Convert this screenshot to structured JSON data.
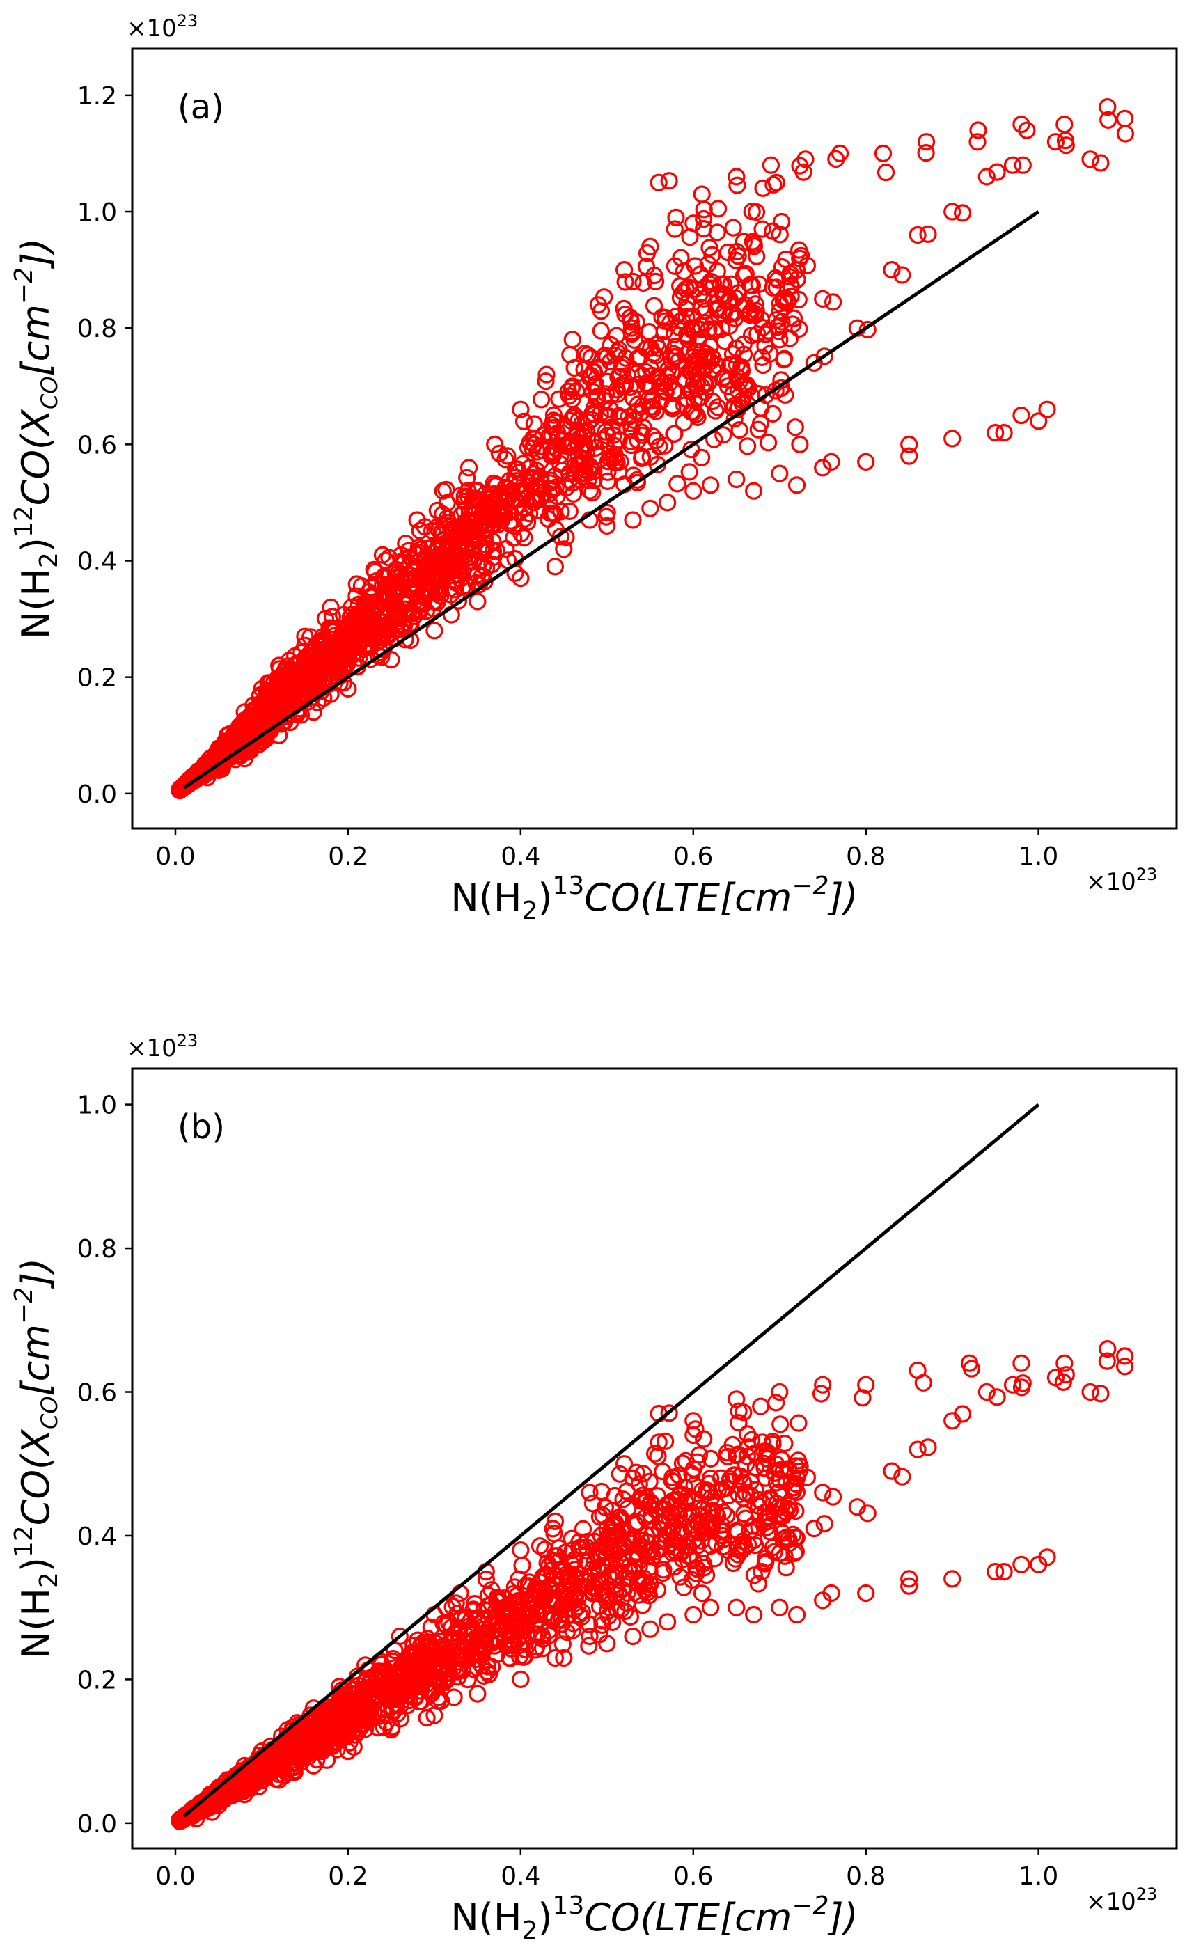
{
  "chart_data": [
    {
      "id": "a",
      "type": "scatter",
      "panel_label": "(a)",
      "xlabel_parts": {
        "n": "N(H",
        "sub": "2",
        "close": ")",
        "iso": "13",
        "co": "CO(LTE[cm",
        "exp": "−2",
        "end": "])"
      },
      "ylabel_parts": {
        "n": "N(H",
        "sub": "2",
        "close": ")",
        "iso": "12",
        "co": "CO(X",
        "co_sub": "CO",
        "bracket": "[cm",
        "exp": "−2",
        "end": "])"
      },
      "x_scale_note": {
        "base": "×10",
        "exp": "23"
      },
      "y_scale_note": {
        "base": "×10",
        "exp": "23"
      },
      "xlim": [
        -0.05,
        1.16
      ],
      "ylim": [
        -0.06,
        1.28
      ],
      "xticks": [
        0.0,
        0.2,
        0.4,
        0.6,
        0.8,
        1.0
      ],
      "xtick_labels": [
        "0.0",
        "0.2",
        "0.4",
        "0.6",
        "0.8",
        "1.0"
      ],
      "yticks": [
        0.0,
        0.2,
        0.4,
        0.6,
        0.8,
        1.0,
        1.2
      ],
      "ytick_labels": [
        "0.0",
        "0.2",
        "0.4",
        "0.6",
        "0.8",
        "1.0",
        "1.2"
      ],
      "reference_line": {
        "x": [
          0.01,
          1.0
        ],
        "y": [
          0.01,
          1.0
        ],
        "color": "#000000"
      },
      "marker_color": "#ff0000",
      "series_upper": [
        [
          0.02,
          0.03
        ],
        [
          0.04,
          0.06
        ],
        [
          0.06,
          0.1
        ],
        [
          0.08,
          0.14
        ],
        [
          0.1,
          0.18
        ],
        [
          0.12,
          0.22
        ],
        [
          0.15,
          0.27
        ],
        [
          0.18,
          0.32
        ],
        [
          0.21,
          0.36
        ],
        [
          0.24,
          0.41
        ],
        [
          0.28,
          0.47
        ],
        [
          0.31,
          0.52
        ],
        [
          0.34,
          0.56
        ],
        [
          0.37,
          0.6
        ],
        [
          0.4,
          0.66
        ],
        [
          0.43,
          0.72
        ],
        [
          0.46,
          0.78
        ],
        [
          0.49,
          0.84
        ],
        [
          0.52,
          0.9
        ],
        [
          0.55,
          0.94
        ],
        [
          0.58,
          0.99
        ],
        [
          0.61,
          1.03
        ],
        [
          0.65,
          1.06
        ],
        [
          0.69,
          1.08
        ],
        [
          0.73,
          1.09
        ],
        [
          0.77,
          1.1
        ],
        [
          0.82,
          1.1
        ],
        [
          0.87,
          1.12
        ],
        [
          0.93,
          1.14
        ],
        [
          0.98,
          1.15
        ],
        [
          1.03,
          1.15
        ],
        [
          1.08,
          1.18
        ],
        [
          1.1,
          1.16
        ]
      ],
      "series_lower": [
        [
          0.02,
          0.02
        ],
        [
          0.05,
          0.04
        ],
        [
          0.08,
          0.06
        ],
        [
          0.12,
          0.1
        ],
        [
          0.16,
          0.14
        ],
        [
          0.2,
          0.18
        ],
        [
          0.25,
          0.23
        ],
        [
          0.3,
          0.28
        ],
        [
          0.35,
          0.33
        ],
        [
          0.4,
          0.37
        ],
        [
          0.45,
          0.42
        ],
        [
          0.5,
          0.46
        ],
        [
          0.55,
          0.49
        ],
        [
          0.6,
          0.52
        ],
        [
          0.65,
          0.54
        ],
        [
          0.7,
          0.55
        ],
        [
          0.75,
          0.56
        ],
        [
          0.8,
          0.57
        ],
        [
          0.85,
          0.6
        ],
        [
          0.9,
          0.61
        ],
        [
          0.95,
          0.62
        ],
        [
          1.0,
          0.64
        ]
      ],
      "series_outliers": [
        [
          0.44,
          0.39
        ],
        [
          0.48,
          0.47
        ],
        [
          0.53,
          0.47
        ],
        [
          0.57,
          0.5
        ],
        [
          0.62,
          0.53
        ],
        [
          0.67,
          0.52
        ],
        [
          0.72,
          0.53
        ],
        [
          0.76,
          0.57
        ],
        [
          0.85,
          0.58
        ],
        [
          0.96,
          0.62
        ],
        [
          0.98,
          0.65
        ],
        [
          1.01,
          0.66
        ]
      ],
      "series_scatter_upper": [
        [
          0.56,
          1.05
        ],
        [
          0.6,
          0.98
        ],
        [
          0.64,
          0.93
        ],
        [
          0.68,
          0.97
        ],
        [
          0.72,
          0.9
        ],
        [
          0.75,
          0.85
        ],
        [
          0.79,
          0.8
        ],
        [
          0.83,
          0.9
        ],
        [
          0.86,
          0.96
        ],
        [
          0.9,
          1.0
        ],
        [
          0.94,
          1.06
        ],
        [
          0.97,
          1.08
        ],
        [
          1.02,
          1.12
        ],
        [
          1.06,
          1.09
        ],
        [
          0.62,
          0.88
        ],
        [
          0.66,
          0.84
        ],
        [
          0.7,
          0.78
        ],
        [
          0.74,
          0.74
        ],
        [
          0.53,
          0.88
        ],
        [
          0.58,
          0.82
        ],
        [
          0.5,
          0.75
        ],
        [
          0.46,
          0.7
        ],
        [
          0.55,
          0.7
        ],
        [
          0.6,
          0.75
        ],
        [
          0.64,
          0.7
        ]
      ]
    },
    {
      "id": "b",
      "type": "scatter",
      "panel_label": "(b)",
      "xlabel_parts": {
        "n": "N(H",
        "sub": "2",
        "close": ")",
        "iso": "13",
        "co": "CO(LTE[cm",
        "exp": "−2",
        "end": "])"
      },
      "ylabel_parts": {
        "n": "N(H",
        "sub": "2",
        "close": ")",
        "iso": "12",
        "co": "CO(X",
        "co_sub": "CO",
        "bracket": "[cm",
        "exp": "−2",
        "end": "])"
      },
      "x_scale_note": {
        "base": "×10",
        "exp": "23"
      },
      "y_scale_note": {
        "base": "×10",
        "exp": "23"
      },
      "xlim": [
        -0.05,
        1.16
      ],
      "ylim": [
        -0.035,
        1.05
      ],
      "xticks": [
        0.0,
        0.2,
        0.4,
        0.6,
        0.8,
        1.0
      ],
      "xtick_labels": [
        "0.0",
        "0.2",
        "0.4",
        "0.6",
        "0.8",
        "1.0"
      ],
      "yticks": [
        0.0,
        0.2,
        0.4,
        0.6,
        0.8,
        1.0
      ],
      "ytick_labels": [
        "0.0",
        "0.2",
        "0.4",
        "0.6",
        "0.8",
        "1.0"
      ],
      "reference_line": {
        "x": [
          0.01,
          1.0
        ],
        "y": [
          0.01,
          1.0
        ],
        "color": "#000000"
      },
      "marker_color": "#ff0000",
      "series_upper": [
        [
          0.02,
          0.02
        ],
        [
          0.04,
          0.04
        ],
        [
          0.06,
          0.06
        ],
        [
          0.08,
          0.08
        ],
        [
          0.1,
          0.1
        ],
        [
          0.13,
          0.13
        ],
        [
          0.16,
          0.16
        ],
        [
          0.19,
          0.19
        ],
        [
          0.22,
          0.22
        ],
        [
          0.26,
          0.26
        ],
        [
          0.3,
          0.29
        ],
        [
          0.33,
          0.32
        ],
        [
          0.36,
          0.35
        ],
        [
          0.4,
          0.38
        ],
        [
          0.44,
          0.42
        ],
        [
          0.48,
          0.46
        ],
        [
          0.52,
          0.5
        ],
        [
          0.56,
          0.53
        ],
        [
          0.6,
          0.56
        ],
        [
          0.65,
          0.59
        ],
        [
          0.7,
          0.6
        ],
        [
          0.75,
          0.61
        ],
        [
          0.8,
          0.61
        ],
        [
          0.86,
          0.63
        ],
        [
          0.92,
          0.64
        ],
        [
          0.98,
          0.64
        ],
        [
          1.03,
          0.64
        ],
        [
          1.08,
          0.66
        ],
        [
          1.1,
          0.65
        ]
      ],
      "series_lower": [
        [
          0.02,
          0.01
        ],
        [
          0.05,
          0.025
        ],
        [
          0.08,
          0.04
        ],
        [
          0.12,
          0.06
        ],
        [
          0.16,
          0.08
        ],
        [
          0.2,
          0.1
        ],
        [
          0.25,
          0.13
        ],
        [
          0.3,
          0.15
        ],
        [
          0.35,
          0.18
        ],
        [
          0.4,
          0.2
        ],
        [
          0.45,
          0.23
        ],
        [
          0.5,
          0.25
        ],
        [
          0.55,
          0.27
        ],
        [
          0.6,
          0.29
        ],
        [
          0.65,
          0.3
        ],
        [
          0.7,
          0.3
        ],
        [
          0.75,
          0.31
        ],
        [
          0.8,
          0.32
        ],
        [
          0.85,
          0.33
        ],
        [
          0.9,
          0.34
        ],
        [
          0.95,
          0.35
        ],
        [
          1.0,
          0.36
        ]
      ],
      "series_outliers": [
        [
          0.44,
          0.23
        ],
        [
          0.48,
          0.26
        ],
        [
          0.53,
          0.26
        ],
        [
          0.57,
          0.28
        ],
        [
          0.62,
          0.3
        ],
        [
          0.67,
          0.29
        ],
        [
          0.72,
          0.29
        ],
        [
          0.76,
          0.32
        ],
        [
          0.85,
          0.34
        ],
        [
          0.96,
          0.35
        ],
        [
          0.98,
          0.36
        ],
        [
          1.01,
          0.37
        ]
      ],
      "series_scatter_upper": [
        [
          0.56,
          0.57
        ],
        [
          0.6,
          0.54
        ],
        [
          0.64,
          0.51
        ],
        [
          0.68,
          0.53
        ],
        [
          0.72,
          0.48
        ],
        [
          0.75,
          0.46
        ],
        [
          0.79,
          0.44
        ],
        [
          0.83,
          0.49
        ],
        [
          0.86,
          0.52
        ],
        [
          0.9,
          0.56
        ],
        [
          0.94,
          0.6
        ],
        [
          0.97,
          0.61
        ],
        [
          1.02,
          0.62
        ],
        [
          1.06,
          0.6
        ],
        [
          0.62,
          0.48
        ],
        [
          0.66,
          0.46
        ],
        [
          0.7,
          0.43
        ],
        [
          0.74,
          0.41
        ],
        [
          0.53,
          0.48
        ],
        [
          0.58,
          0.45
        ],
        [
          0.5,
          0.41
        ],
        [
          0.46,
          0.38
        ],
        [
          0.55,
          0.38
        ],
        [
          0.6,
          0.41
        ],
        [
          0.64,
          0.38
        ]
      ]
    }
  ]
}
